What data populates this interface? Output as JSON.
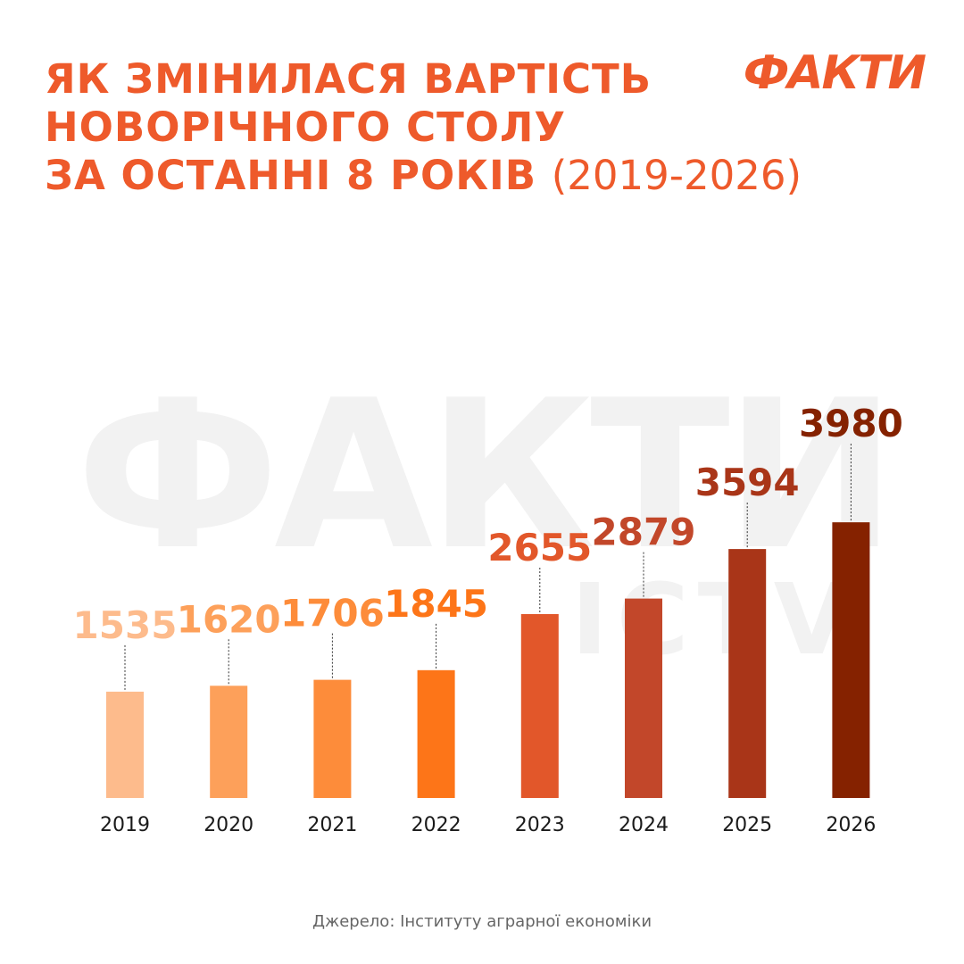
{
  "header": {
    "title_line1": "ЯК ЗМІНИЛАСЯ ВАРТІСТЬ",
    "title_line2": "НОВОРІЧНОГО СТОЛУ",
    "title_line3": "ЗА ОСТАННІ 8 РОКІВ",
    "title_range": "(2019-2026)",
    "logo": "ФАКТИ"
  },
  "watermark": {
    "main": "ФАКТИ",
    "sub": "ICTV"
  },
  "chart_data": {
    "type": "bar",
    "categories": [
      "2019",
      "2020",
      "2021",
      "2022",
      "2023",
      "2024",
      "2025",
      "2026"
    ],
    "values": [
      1535,
      1620,
      1706,
      1845,
      2655,
      2879,
      3594,
      3980
    ],
    "colors": [
      "#fdbb8c",
      "#fda05a",
      "#fd8c3a",
      "#fd7518",
      "#e2572a",
      "#c2472a",
      "#a93518",
      "#852200"
    ],
    "title": "ЯК ЗМІНИЛАСЯ ВАРТІСТЬ НОВОРІЧНОГО СТОЛУ ЗА ОСТАННІ 8 РОКІВ (2019-2026)",
    "xlabel": "",
    "ylabel": "",
    "grid": false,
    "legend": "none"
  },
  "footer": {
    "source": "Джерело:  Інституту аграрної економіки"
  }
}
